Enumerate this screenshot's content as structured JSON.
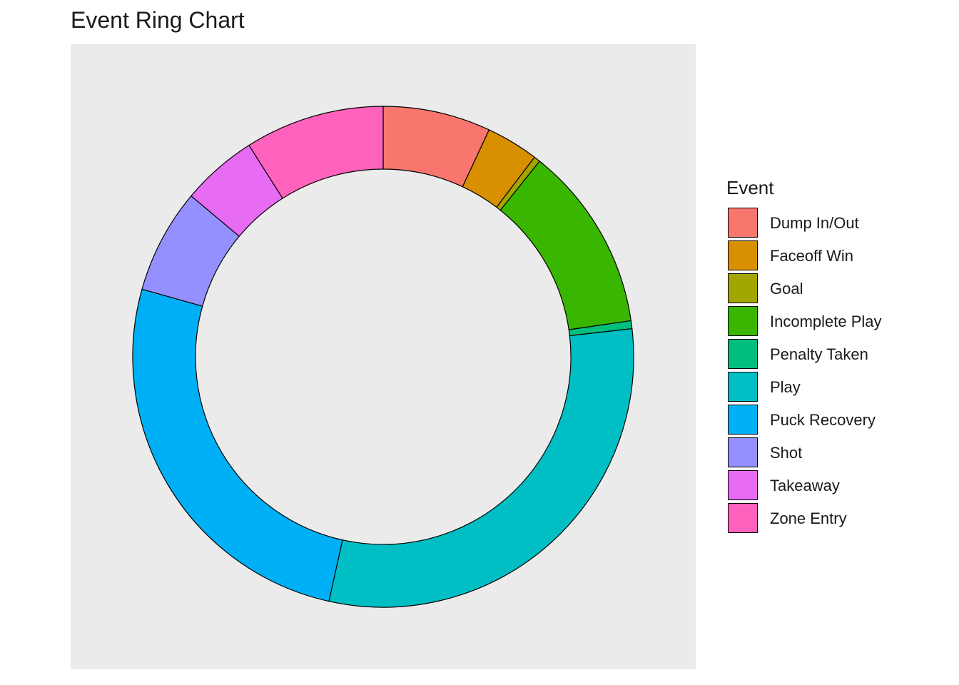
{
  "chart_data": {
    "type": "pie",
    "variant": "ring",
    "title": "Event Ring Chart",
    "legend_title": "Event",
    "legend_position": "right",
    "slices": [
      {
        "label": "Dump In/Out",
        "value": 6.8,
        "color": "#F8766D"
      },
      {
        "label": "Faceoff Win",
        "value": 3.3,
        "color": "#D89000"
      },
      {
        "label": "Goal",
        "value": 0.4,
        "color": "#A3A500"
      },
      {
        "label": "Incomplete Play",
        "value": 11.7,
        "color": "#39B600"
      },
      {
        "label": "Penalty Taken",
        "value": 0.5,
        "color": "#00BF7D"
      },
      {
        "label": "Play",
        "value": 29.6,
        "color": "#00BFC4"
      },
      {
        "label": "Puck Recovery",
        "value": 25.3,
        "color": "#00B0F6"
      },
      {
        "label": "Shot",
        "value": 6.6,
        "color": "#9590FF"
      },
      {
        "label": "Takeaway",
        "value": 4.8,
        "color": "#E76BF3"
      },
      {
        "label": "Zone Entry",
        "value": 8.8,
        "color": "#FF62BC"
      }
    ]
  }
}
